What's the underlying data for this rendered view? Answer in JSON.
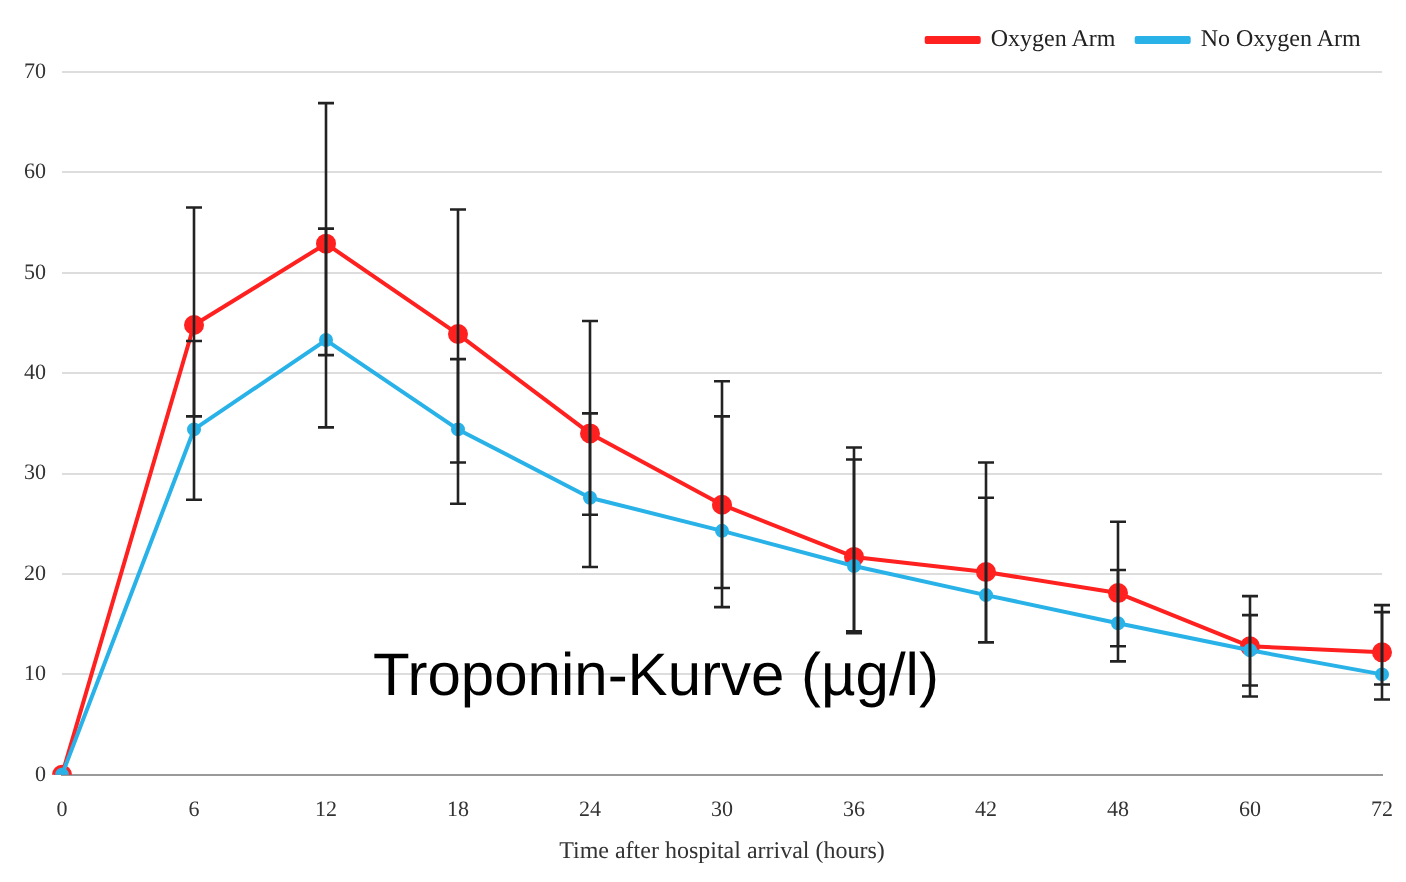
{
  "chart_data": {
    "type": "line",
    "xlabel": "Time after hospital arrival (hours)",
    "categories": [
      "0",
      "6",
      "12",
      "18",
      "24",
      "30",
      "36",
      "42",
      "48",
      "60",
      "72"
    ],
    "series": [
      {
        "name": "Oxygen Arm",
        "color": "#ff2020",
        "values": [
          0,
          44.8,
          52.9,
          43.9,
          34.0,
          26.9,
          21.7,
          20.2,
          18.1,
          12.8,
          12.2
        ],
        "errors": [
          null,
          [
            35.7,
            56.5
          ],
          [
            41.8,
            66.9
          ],
          [
            31.1,
            56.3
          ],
          [
            25.9,
            45.2
          ],
          [
            18.6,
            39.2
          ],
          [
            14.3,
            32.6
          ],
          [
            13.2,
            31.1
          ],
          [
            12.8,
            25.2
          ],
          [
            7.8,
            17.8
          ],
          [
            9.0,
            16.9
          ]
        ]
      },
      {
        "name": "No Oxygen Arm",
        "color": "#29b2e8",
        "values": [
          0,
          34.4,
          43.3,
          34.4,
          27.6,
          24.3,
          20.8,
          17.9,
          15.1,
          12.4,
          10.0
        ],
        "errors": [
          null,
          [
            27.4,
            43.2
          ],
          [
            34.6,
            54.4
          ],
          [
            27.0,
            41.4
          ],
          [
            20.7,
            36.0
          ],
          [
            16.7,
            35.7
          ],
          [
            14.1,
            31.4
          ],
          [
            13.2,
            27.6
          ],
          [
            11.3,
            20.4
          ],
          [
            8.9,
            15.9
          ],
          [
            7.5,
            16.2
          ]
        ]
      }
    ],
    "ylim": [
      0,
      70
    ],
    "yticks": [
      0,
      10,
      20,
      30,
      40,
      50,
      60,
      70
    ],
    "grid": "y",
    "legend": "top right",
    "marker": "circle",
    "line_style": "solid",
    "annotations": [
      "Troponin-Kurve (µg/l)"
    ]
  }
}
